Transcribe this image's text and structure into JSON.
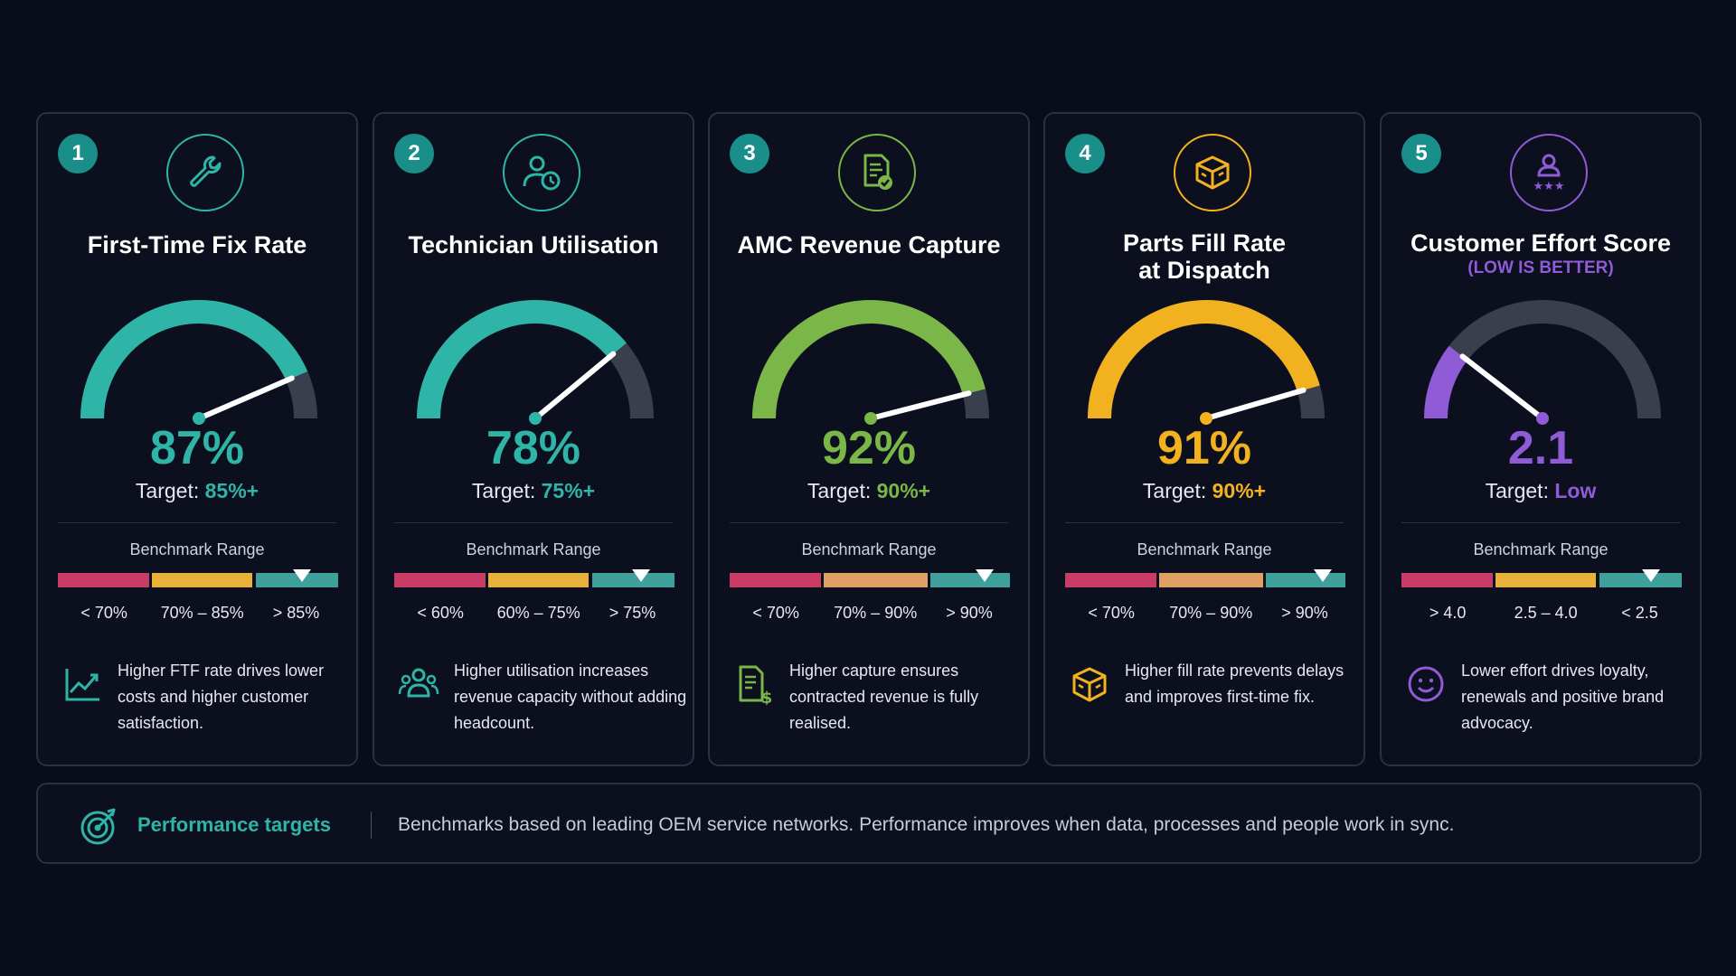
{
  "cards": [
    {
      "number": "1",
      "icon": "wrench-icon",
      "title": "First-Time Fix Rate",
      "subtitle": "",
      "value_text": "87%",
      "value": 87,
      "gauge_min": 0,
      "gauge_max": 100,
      "target_label": "Target:",
      "target_value": "85%+",
      "color": "#2fb5a8",
      "benchmark_label": "Benchmark Range",
      "segments": [
        {
          "label": "< 70%",
          "color": "#c83c66",
          "fraction": 0.33
        },
        {
          "label": "70% – 85%",
          "color": "#e8b23a",
          "fraction": 0.37
        },
        {
          "label": "> 85%",
          "color": "#3f9f9a",
          "fraction": 0.3
        }
      ],
      "marker_fraction": 0.87,
      "desc_icon": "trend-chart-icon",
      "description": "Higher FTF rate drives lower costs and higher customer satisfaction."
    },
    {
      "number": "2",
      "icon": "technician-clock-icon",
      "title": "Technician Utilisation",
      "subtitle": "",
      "value_text": "78%",
      "value": 78,
      "gauge_min": 0,
      "gauge_max": 100,
      "target_label": "Target:",
      "target_value": "75%+",
      "color": "#2fb5a8",
      "benchmark_label": "Benchmark Range",
      "segments": [
        {
          "label": "< 60%",
          "color": "#c83c66",
          "fraction": 0.33
        },
        {
          "label": "60% – 75%",
          "color": "#e8b23a",
          "fraction": 0.37
        },
        {
          "label": "> 75%",
          "color": "#3f9f9a",
          "fraction": 0.3
        }
      ],
      "marker_fraction": 0.88,
      "desc_icon": "team-icon",
      "description": "Higher utilisation increases revenue capacity without adding headcount."
    },
    {
      "number": "3",
      "icon": "document-check-icon",
      "title": "AMC Revenue Capture",
      "subtitle": "",
      "value_text": "92%",
      "value": 92,
      "gauge_min": 0,
      "gauge_max": 100,
      "target_label": "Target:",
      "target_value": "90%+",
      "color": "#7ab648",
      "benchmark_label": "Benchmark Range",
      "segments": [
        {
          "label": "< 70%",
          "color": "#c83c66",
          "fraction": 0.33
        },
        {
          "label": "70% – 90%",
          "color": "#e0a062",
          "fraction": 0.38
        },
        {
          "label": "> 90%",
          "color": "#3f9f9a",
          "fraction": 0.29
        }
      ],
      "marker_fraction": 0.91,
      "desc_icon": "invoice-dollar-icon",
      "description": "Higher capture ensures contracted revenue is fully realised."
    },
    {
      "number": "4",
      "icon": "parts-box-icon",
      "title": "Parts Fill Rate\nat Dispatch",
      "subtitle": "",
      "value_text": "91%",
      "value": 91,
      "gauge_min": 0,
      "gauge_max": 100,
      "target_label": "Target:",
      "target_value": "90%+",
      "color": "#f2b21f",
      "benchmark_label": "Benchmark Range",
      "segments": [
        {
          "label": "< 70%",
          "color": "#c83c66",
          "fraction": 0.33
        },
        {
          "label": "70% – 90%",
          "color": "#e0a062",
          "fraction": 0.38
        },
        {
          "label": "> 90%",
          "color": "#3f9f9a",
          "fraction": 0.29
        }
      ],
      "marker_fraction": 0.92,
      "desc_icon": "box-icon",
      "description": "Higher fill rate prevents delays and improves first-time fix."
    },
    {
      "number": "5",
      "icon": "customer-rating-icon",
      "title": "Customer Effort Score",
      "subtitle": "(LOW IS BETTER)",
      "value_text": "2.1",
      "value": 2.1,
      "gauge_min": 0,
      "gauge_max": 10,
      "target_label": "Target:",
      "target_value": "Low",
      "color": "#8f5bd6",
      "benchmark_label": "Benchmark Range",
      "segments": [
        {
          "label": "> 4.0",
          "color": "#c83c66",
          "fraction": 0.33
        },
        {
          "label": "2.5 – 4.0",
          "color": "#e8b23a",
          "fraction": 0.37
        },
        {
          "label": "< 2.5",
          "color": "#3f9f9a",
          "fraction": 0.3
        }
      ],
      "marker_fraction": 0.89,
      "desc_icon": "smiley-icon",
      "description": "Lower effort drives loyalty, renewals and positive brand advocacy."
    }
  ],
  "footer": {
    "icon": "target-icon",
    "label": "Performance targets",
    "text": "Benchmarks based on leading OEM service networks. Performance improves when data, processes and people work in sync."
  },
  "chart_data": [
    {
      "type": "gauge",
      "title": "First-Time Fix Rate",
      "value": 87,
      "unit": "%",
      "range": [
        0,
        100
      ],
      "target": "85%+",
      "benchmarks": [
        "< 70%",
        "70% – 85%",
        "> 85%"
      ]
    },
    {
      "type": "gauge",
      "title": "Technician Utilisation",
      "value": 78,
      "unit": "%",
      "range": [
        0,
        100
      ],
      "target": "75%+",
      "benchmarks": [
        "< 60%",
        "60% – 75%",
        "> 75%"
      ]
    },
    {
      "type": "gauge",
      "title": "AMC Revenue Capture",
      "value": 92,
      "unit": "%",
      "range": [
        0,
        100
      ],
      "target": "90%+",
      "benchmarks": [
        "< 70%",
        "70% – 90%",
        "> 90%"
      ]
    },
    {
      "type": "gauge",
      "title": "Parts Fill Rate at Dispatch",
      "value": 91,
      "unit": "%",
      "range": [
        0,
        100
      ],
      "target": "90%+",
      "benchmarks": [
        "< 70%",
        "70% – 90%",
        "> 90%"
      ]
    },
    {
      "type": "gauge",
      "title": "Customer Effort Score",
      "subtitle": "(LOW IS BETTER)",
      "value": 2.1,
      "range": [
        0,
        10
      ],
      "target": "Low",
      "benchmarks": [
        "> 4.0",
        "2.5 – 4.0",
        "< 2.5"
      ]
    }
  ]
}
